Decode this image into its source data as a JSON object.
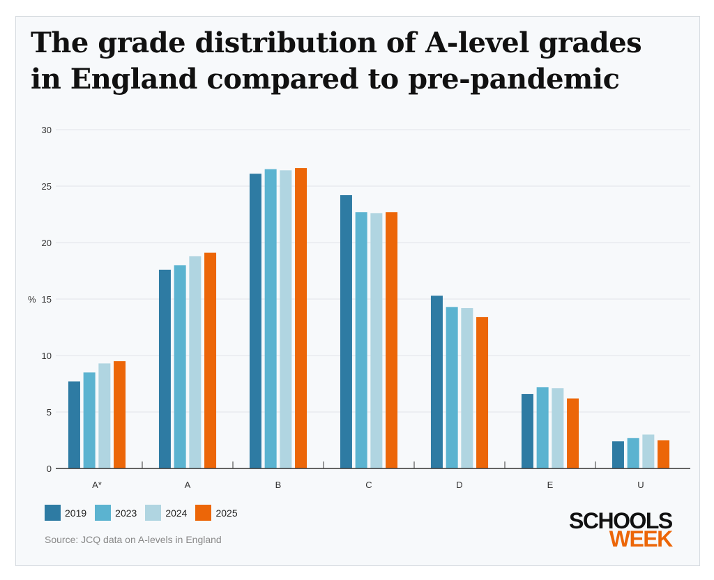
{
  "chart_data": {
    "type": "bar",
    "title": "The grade distribution of A-level grades in England compared to pre-pandemic",
    "ylabel": "%",
    "xlabel": "",
    "ylim": [
      0,
      30
    ],
    "yticks": [
      0,
      5,
      10,
      15,
      20,
      25,
      30
    ],
    "grid": true,
    "legend": "bottom-left",
    "categories": [
      "A*",
      "A",
      "B",
      "C",
      "D",
      "E",
      "U"
    ],
    "series": [
      {
        "name": "2019",
        "color": "#2e7ba3",
        "values": [
          7.7,
          17.6,
          26.1,
          24.2,
          15.3,
          6.6,
          2.4
        ]
      },
      {
        "name": "2023",
        "color": "#5bb3d0",
        "values": [
          8.5,
          18.0,
          26.5,
          22.7,
          14.3,
          7.2,
          2.7
        ]
      },
      {
        "name": "2024",
        "color": "#b0d5e1",
        "values": [
          9.3,
          18.8,
          26.4,
          22.6,
          14.2,
          7.1,
          3.0
        ]
      },
      {
        "name": "2025",
        "color": "#ec6608",
        "values": [
          9.5,
          19.1,
          26.6,
          22.7,
          13.4,
          6.2,
          2.5
        ]
      }
    ]
  },
  "source": "Source: JCQ data on A-levels in England",
  "logo": {
    "line1": "SCHOOLS",
    "line2": "WEEK"
  }
}
